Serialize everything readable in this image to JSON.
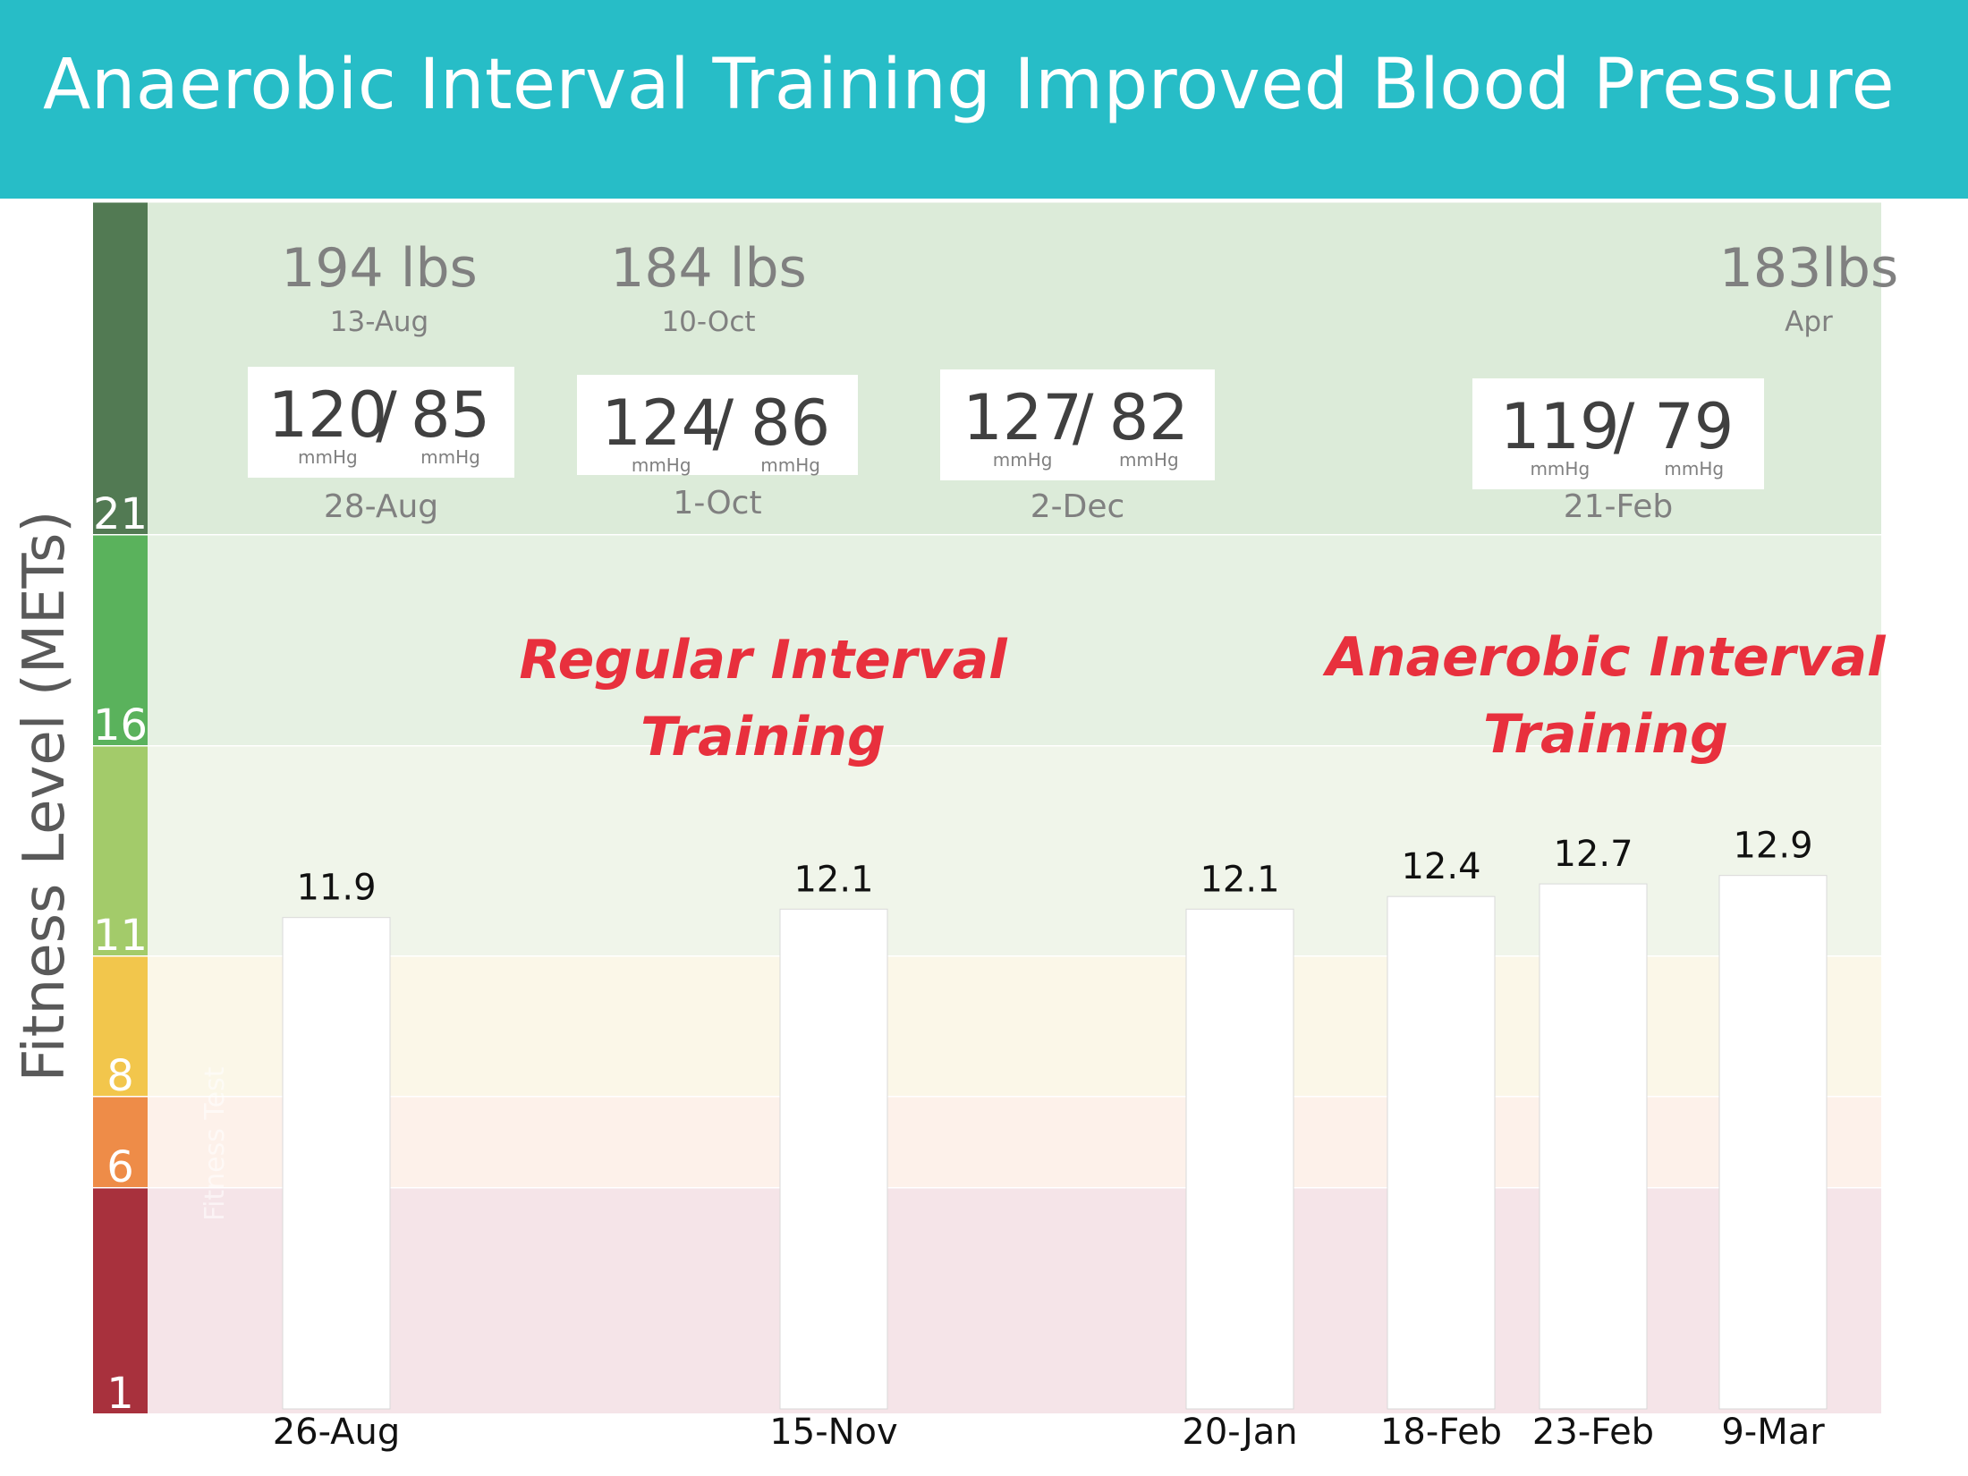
{
  "title": "Anaerobic Interval Training Improved Blood Pressure",
  "y_axis_label": "Fitness Level (METs)",
  "zones": [
    {
      "from": 1,
      "to": 6,
      "label": "1",
      "bar_color": "#a8313d",
      "bg_color": "#f5e4e8"
    },
    {
      "from": 6,
      "to": 8,
      "label": "6",
      "bar_color": "#ee8c48",
      "bg_color": "#fdf1ea"
    },
    {
      "from": 8,
      "to": 11,
      "label": "8",
      "bar_color": "#f2c64c",
      "bg_color": "#fbf7e8"
    },
    {
      "from": 11,
      "to": 16,
      "label": "11",
      "bar_color": "#a3cb6a",
      "bg_color": "#f0f5ea"
    },
    {
      "from": 16,
      "to": 21,
      "label": "16",
      "bar_color": "#5ab25c",
      "bg_color": "#e6f1e3"
    },
    {
      "from": 21,
      "to": 24.6,
      "label": "21",
      "bar_color": "#527a53",
      "bg_color": "#dcebd9"
    }
  ],
  "faint_label": "Fitness Test",
  "weights": [
    {
      "value": "194 lbs",
      "date": "13-Aug"
    },
    {
      "value": "184 lbs",
      "date": "10-Oct"
    },
    {
      "value": "183lbs",
      "date": "Apr"
    }
  ],
  "blood_pressure": [
    {
      "systolic": "120",
      "diastolic": "85",
      "unit": "mmHg",
      "date": "28-Aug"
    },
    {
      "systolic": "124",
      "diastolic": "86",
      "unit": "mmHg",
      "date": "1-Oct"
    },
    {
      "systolic": "127",
      "diastolic": "82",
      "unit": "mmHg",
      "date": "2-Dec"
    },
    {
      "systolic": "119",
      "diastolic": "79",
      "unit": "mmHg",
      "date": "21-Feb"
    }
  ],
  "annotations": [
    {
      "line1": "Regular Interval",
      "line2": "Training"
    },
    {
      "line1": "Anaerobic Interval",
      "line2": "Training"
    }
  ],
  "chart_data": {
    "type": "bar",
    "title": "Anaerobic Interval Training Improved Blood Pressure",
    "ylabel": "Fitness Level (METs)",
    "categories": [
      "26-Aug",
      "15-Nov",
      "20-Jan",
      "18-Feb",
      "23-Feb",
      "9-Mar"
    ],
    "values": [
      11.9,
      12.1,
      12.1,
      12.4,
      12.7,
      12.9
    ],
    "value_labels": [
      "11.9",
      "12.1",
      "12.1",
      "12.4",
      "12.7",
      "12.9"
    ],
    "y_ticks": [
      "1",
      "6",
      "8",
      "11",
      "16",
      "21"
    ],
    "bar_color": "#ffffff",
    "annotation_color": "#e8303d"
  }
}
